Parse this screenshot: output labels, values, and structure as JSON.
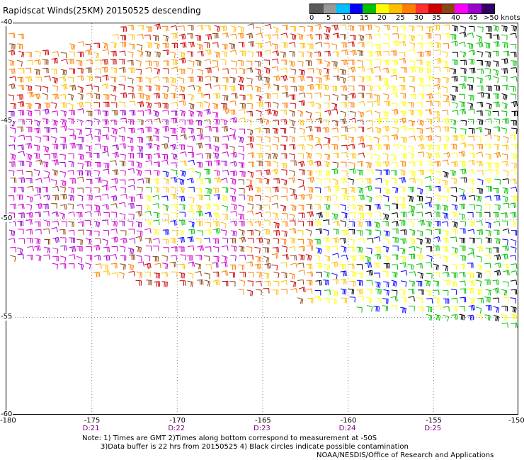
{
  "title": "Rapidscat Winds(25KM) 20150525 descending",
  "legend": {
    "colors": [
      "#5a5a5a",
      "#999999",
      "#00bfff",
      "#0000ff",
      "#00c000",
      "#ffff00",
      "#ffc000",
      "#ff8000",
      "#ff3030",
      "#cc0000",
      "#8b4513",
      "#ff00ff",
      "#9900cc",
      "#330066"
    ],
    "labels": [
      "0",
      "5",
      "10",
      "15",
      "20",
      "25",
      "30",
      "35",
      "40",
      "45",
      ">50 knots"
    ]
  },
  "axes": {
    "x_ticks": [
      "-180",
      "-175",
      "-170",
      "-165",
      "-160",
      "-155",
      "-150"
    ],
    "y_ticks": [
      "-40",
      "-45",
      "-50",
      "-55",
      "-60"
    ],
    "x_range": [
      -180,
      -150
    ],
    "y_range": [
      -60,
      -40
    ],
    "grid": "dotted"
  },
  "time_labels": [
    "D:21",
    "D:22",
    "D:23",
    "D:24",
    "D:25"
  ],
  "note": {
    "line1": "Note: 1) Times are GMT 2)Times along bottom correspond to measurement at -50S",
    "line2": "3)Data buffer is 22 hrs from 20150525 4) Black circles indicate possible contamination"
  },
  "credit": "NOAA/NESDIS/Office of Research and Applications",
  "wind_field": {
    "description_colors": {
      "high": "#9900cc",
      "very_high": "#cc00cc",
      "strong": "#8b4513",
      "moderate_high": "#cc0000",
      "moderate": "#ff8000",
      "fresh": "#ffc000",
      "light": "#ffff00",
      "calm": "#00c000",
      "calmer": "#0000ff",
      "black": "#000000"
    }
  }
}
